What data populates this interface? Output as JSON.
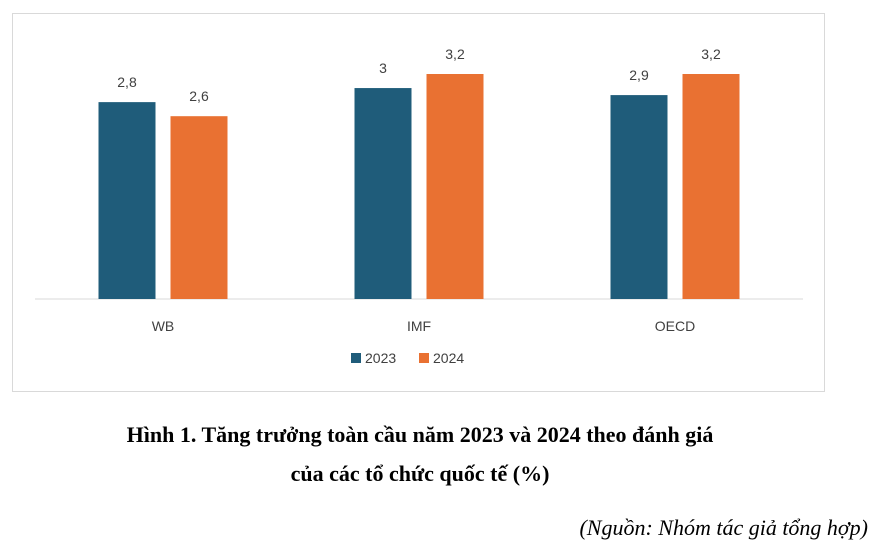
{
  "chart_data": {
    "type": "bar",
    "categories": [
      "WB",
      "IMF",
      "OECD"
    ],
    "series": [
      {
        "name": "2023",
        "values": [
          2.8,
          3.0,
          2.9
        ],
        "labels": [
          "2,8",
          "3",
          "2,9"
        ],
        "color": "#1f5c7a"
      },
      {
        "name": "2024",
        "values": [
          2.6,
          3.2,
          3.2
        ],
        "labels": [
          "2,6",
          "3,2",
          "3,2"
        ],
        "color": "#e97132"
      }
    ],
    "ylim": [
      0,
      3.2
    ],
    "grid": false,
    "legend": "bottom"
  },
  "caption": {
    "line1": "Hình 1. Tăng trưởng toàn cầu năm 2023 và 2024 theo đánh giá",
    "line2": "của các tổ chức quốc tế (%)"
  },
  "source": "(Nguồn: Nhóm tác giả tổng hợp)"
}
